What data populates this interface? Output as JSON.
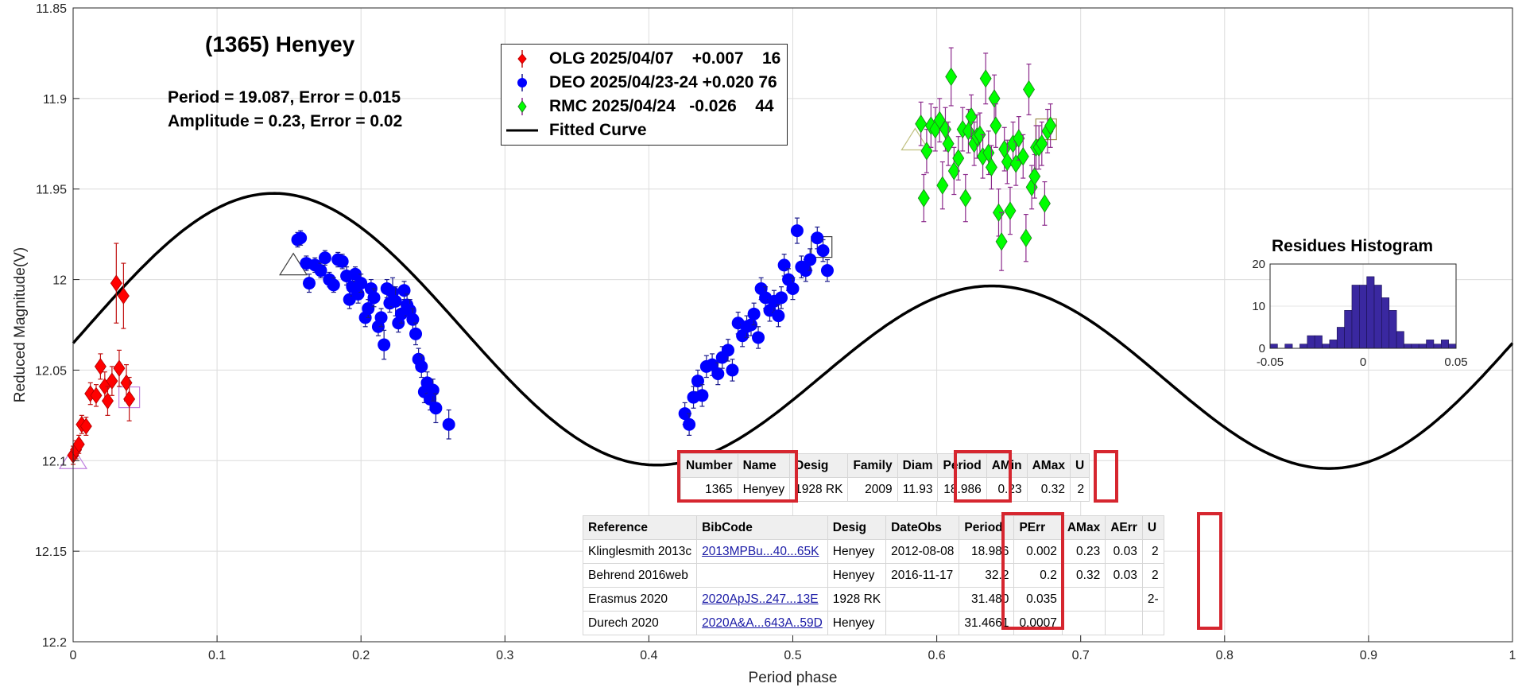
{
  "chart_data": {
    "type": "scatter",
    "title": "(1365) Henyey",
    "xlabel": "Period phase",
    "ylabel": "Reduced Magnitude(V)",
    "xlim": [
      0,
      1
    ],
    "ylim": [
      11.85,
      12.2
    ],
    "y_reversed": true,
    "grid": true,
    "x_ticks": [
      "0",
      "0.1",
      "0.2",
      "0.3",
      "0.4",
      "0.5",
      "0.6",
      "0.7",
      "0.8",
      "0.9",
      "1"
    ],
    "y_ticks": [
      "11.85",
      "11.9",
      "11.95",
      "12",
      "12.05",
      "12.1",
      "12.15",
      "12.2"
    ],
    "info_line1": "Period =  19.087, Error = 0.015",
    "info_line2": "Amplitude = 0.23, Error = 0.02",
    "fit": {
      "name": "Fitted Curve",
      "mean": 12.04,
      "a1": -0.0157,
      "b1": -0.0202,
      "a2": 0.0108,
      "b2": -0.0611
    },
    "series": [
      {
        "name": "OLG",
        "date": "2025/04/07",
        "offset": "+0.007",
        "count": "16",
        "color": "#ff0000",
        "marker": "diamond",
        "points": [
          [
            0.0,
            12.097,
            0.005
          ],
          [
            0.002,
            12.094,
            0.005
          ],
          [
            0.004,
            12.091,
            0.005
          ],
          [
            0.006,
            12.08,
            0.005
          ],
          [
            0.009,
            12.081,
            0.005
          ],
          [
            0.012,
            12.063,
            0.006
          ],
          [
            0.016,
            12.064,
            0.006
          ],
          [
            0.019,
            12.048,
            0.007
          ],
          [
            0.022,
            12.059,
            0.008
          ],
          [
            0.024,
            12.067,
            0.008
          ],
          [
            0.027,
            12.056,
            0.008
          ],
          [
            0.03,
            12.002,
            0.022
          ],
          [
            0.032,
            12.049,
            0.01
          ],
          [
            0.035,
            12.009,
            0.018
          ],
          [
            0.037,
            12.057,
            0.01
          ],
          [
            0.039,
            12.066,
            0.012
          ]
        ]
      },
      {
        "name": "DEO",
        "date": "2025/04/23-24",
        "offset": "+0.020",
        "count": "76",
        "color": "#0000ff",
        "marker": "circle",
        "points": [
          [
            0.156,
            11.978,
            0.004
          ],
          [
            0.158,
            11.977,
            0.004
          ],
          [
            0.162,
            11.991,
            0.004
          ],
          [
            0.164,
            12.002,
            0.005
          ],
          [
            0.168,
            11.992,
            0.004
          ],
          [
            0.172,
            11.995,
            0.004
          ],
          [
            0.175,
            11.988,
            0.004
          ],
          [
            0.178,
            12.0,
            0.004
          ],
          [
            0.181,
            12.003,
            0.004
          ],
          [
            0.184,
            11.989,
            0.004
          ],
          [
            0.187,
            11.99,
            0.004
          ],
          [
            0.19,
            11.998,
            0.005
          ],
          [
            0.192,
            12.011,
            0.005
          ],
          [
            0.194,
            12.004,
            0.005
          ],
          [
            0.196,
            11.997,
            0.004
          ],
          [
            0.198,
            12.008,
            0.005
          ],
          [
            0.2,
            12.002,
            0.005
          ],
          [
            0.203,
            12.021,
            0.005
          ],
          [
            0.205,
            12.016,
            0.005
          ],
          [
            0.207,
            12.005,
            0.005
          ],
          [
            0.209,
            12.01,
            0.005
          ],
          [
            0.212,
            12.026,
            0.005
          ],
          [
            0.214,
            12.021,
            0.005
          ],
          [
            0.216,
            12.036,
            0.008
          ],
          [
            0.218,
            12.005,
            0.005
          ],
          [
            0.22,
            12.013,
            0.005
          ],
          [
            0.222,
            12.007,
            0.008
          ],
          [
            0.224,
            12.012,
            0.008
          ],
          [
            0.226,
            12.024,
            0.005
          ],
          [
            0.228,
            12.019,
            0.005
          ],
          [
            0.23,
            12.006,
            0.005
          ],
          [
            0.232,
            12.014,
            0.006
          ],
          [
            0.234,
            12.017,
            0.006
          ],
          [
            0.236,
            12.022,
            0.006
          ],
          [
            0.238,
            12.03,
            0.006
          ],
          [
            0.24,
            12.044,
            0.006
          ],
          [
            0.242,
            12.048,
            0.006
          ],
          [
            0.244,
            12.062,
            0.006
          ],
          [
            0.246,
            12.057,
            0.006
          ],
          [
            0.248,
            12.066,
            0.006
          ],
          [
            0.25,
            12.061,
            0.006
          ],
          [
            0.252,
            12.071,
            0.008
          ],
          [
            0.261,
            12.08,
            0.008
          ],
          [
            0.425,
            12.074,
            0.006
          ],
          [
            0.428,
            12.08,
            0.006
          ],
          [
            0.431,
            12.065,
            0.006
          ],
          [
            0.434,
            12.056,
            0.006
          ],
          [
            0.437,
            12.064,
            0.006
          ],
          [
            0.44,
            12.048,
            0.006
          ],
          [
            0.444,
            12.047,
            0.006
          ],
          [
            0.448,
            12.052,
            0.006
          ],
          [
            0.451,
            12.043,
            0.006
          ],
          [
            0.455,
            12.039,
            0.006
          ],
          [
            0.458,
            12.05,
            0.006
          ],
          [
            0.462,
            12.024,
            0.006
          ],
          [
            0.465,
            12.031,
            0.006
          ],
          [
            0.468,
            12.026,
            0.006
          ],
          [
            0.471,
            12.025,
            0.006
          ],
          [
            0.473,
            12.019,
            0.006
          ],
          [
            0.476,
            12.032,
            0.006
          ],
          [
            0.478,
            12.005,
            0.006
          ],
          [
            0.481,
            12.01,
            0.006
          ],
          [
            0.484,
            12.017,
            0.006
          ],
          [
            0.487,
            12.012,
            0.006
          ],
          [
            0.49,
            12.02,
            0.006
          ],
          [
            0.492,
            12.01,
            0.006
          ],
          [
            0.494,
            11.992,
            0.006
          ],
          [
            0.497,
            12.0,
            0.006
          ],
          [
            0.5,
            12.005,
            0.006
          ],
          [
            0.503,
            11.973,
            0.007
          ],
          [
            0.506,
            11.993,
            0.006
          ],
          [
            0.509,
            11.995,
            0.006
          ],
          [
            0.512,
            11.989,
            0.006
          ],
          [
            0.517,
            11.977,
            0.006
          ],
          [
            0.521,
            11.984,
            0.006
          ],
          [
            0.524,
            11.995,
            0.006
          ]
        ]
      },
      {
        "name": "RMC",
        "date": "2025/04/24",
        "offset": "-0.026",
        "count": "44",
        "color": "#00ff00",
        "marker": "diamond",
        "points": [
          [
            0.589,
            11.914,
            0.012
          ],
          [
            0.591,
            11.955,
            0.013
          ],
          [
            0.593,
            11.929,
            0.012
          ],
          [
            0.596,
            11.915,
            0.012
          ],
          [
            0.599,
            11.917,
            0.012
          ],
          [
            0.602,
            11.912,
            0.012
          ],
          [
            0.604,
            11.948,
            0.013
          ],
          [
            0.606,
            11.917,
            0.012
          ],
          [
            0.608,
            11.925,
            0.012
          ],
          [
            0.61,
            11.888,
            0.016
          ],
          [
            0.612,
            11.94,
            0.013
          ],
          [
            0.615,
            11.933,
            0.012
          ],
          [
            0.618,
            11.917,
            0.012
          ],
          [
            0.62,
            11.955,
            0.013
          ],
          [
            0.622,
            11.918,
            0.012
          ],
          [
            0.624,
            11.91,
            0.012
          ],
          [
            0.626,
            11.925,
            0.012
          ],
          [
            0.628,
            11.921,
            0.012
          ],
          [
            0.63,
            11.92,
            0.012
          ],
          [
            0.632,
            11.932,
            0.012
          ],
          [
            0.634,
            11.889,
            0.014
          ],
          [
            0.636,
            11.93,
            0.012
          ],
          [
            0.638,
            11.938,
            0.012
          ],
          [
            0.64,
            11.9,
            0.013
          ],
          [
            0.641,
            11.915,
            0.012
          ],
          [
            0.643,
            11.963,
            0.013
          ],
          [
            0.645,
            11.979,
            0.016
          ],
          [
            0.647,
            11.928,
            0.012
          ],
          [
            0.649,
            11.935,
            0.012
          ],
          [
            0.651,
            11.962,
            0.013
          ],
          [
            0.653,
            11.925,
            0.012
          ],
          [
            0.655,
            11.936,
            0.012
          ],
          [
            0.657,
            11.922,
            0.012
          ],
          [
            0.66,
            11.932,
            0.012
          ],
          [
            0.662,
            11.977,
            0.013
          ],
          [
            0.664,
            11.895,
            0.014
          ],
          [
            0.666,
            11.949,
            0.012
          ],
          [
            0.668,
            11.943,
            0.012
          ],
          [
            0.669,
            11.927,
            0.012
          ],
          [
            0.671,
            11.927,
            0.012
          ],
          [
            0.673,
            11.925,
            0.012
          ],
          [
            0.675,
            11.958,
            0.012
          ],
          [
            0.677,
            11.918,
            0.012
          ],
          [
            0.679,
            11.915,
            0.012
          ]
        ]
      }
    ],
    "boxes": [
      {
        "shape": "triangle",
        "x": 0.0,
        "y": 12.1,
        "color": "#c080e0"
      },
      {
        "shape": "square",
        "x": 0.039,
        "y": 12.065,
        "color": "#c080e0"
      },
      {
        "shape": "triangle",
        "x": 0.153,
        "y": 11.993,
        "color": "#404040"
      },
      {
        "shape": "square",
        "x": 0.52,
        "y": 11.982,
        "color": "#404040"
      },
      {
        "shape": "triangle",
        "x": 0.585,
        "y": 11.924,
        "color": "#c0c080"
      },
      {
        "shape": "square",
        "x": 0.676,
        "y": 11.917,
        "color": "#a09050"
      }
    ],
    "histogram": {
      "title": "Residues Histogram",
      "xlim": [
        -0.05,
        0.05
      ],
      "ylim": [
        0,
        20
      ],
      "x_ticks": [
        "-0.05",
        "0",
        "0.05"
      ],
      "y_ticks": [
        "0",
        "10",
        "20"
      ],
      "bins_start": -0.05,
      "bin_width": 0.004,
      "counts": [
        1,
        0,
        1,
        0,
        1,
        3,
        3,
        1,
        2,
        5,
        9,
        15,
        15,
        17,
        15,
        12,
        9,
        4,
        1,
        1,
        1,
        2,
        1,
        2,
        1
      ],
      "color": "#3a28a0"
    }
  },
  "legend": {
    "rows": [
      {
        "name": "OLG",
        "date": "2025/04/07",
        "offset": "+0.007",
        "count": "16",
        "color": "#ff0000",
        "marker": "diamond"
      },
      {
        "name": "DEO",
        "date": "2025/04/23-24",
        "offset": "+0.020",
        "count": "76",
        "color": "#0000ff",
        "marker": "circle"
      },
      {
        "name": "RMC",
        "date": "2025/04/24",
        "offset": "-0.026",
        "count": "44",
        "color": "#00ff00",
        "marker": "diamond"
      }
    ],
    "fit_label": "Fitted Curve"
  },
  "summary_table": {
    "headers": [
      "Number",
      "Name",
      "Desig",
      "Family",
      "Diam",
      "Period",
      "AMin",
      "AMax",
      "U"
    ],
    "row": [
      "1365",
      "Henyey",
      "1928 RK",
      "2009",
      "11.93",
      "18.986",
      "0.23",
      "0.32",
      "2"
    ]
  },
  "ref_table": {
    "headers": [
      "Reference",
      "BibCode",
      "Desig",
      "DateObs",
      "Period",
      "PErr",
      "AMax",
      "AErr",
      "U"
    ],
    "rows": [
      [
        "Klinglesmith 2013c",
        "2013MPBu...40...65K",
        "Henyey",
        "2012-08-08",
        "18.986",
        "0.002",
        "0.23",
        "0.03",
        "2"
      ],
      [
        "Behrend 2016web",
        "",
        "Henyey",
        "2016-11-17",
        "32.2",
        "0.2",
        "0.32",
        "0.03",
        "2"
      ],
      [
        "Erasmus 2020",
        "2020ApJS..247...13E",
        "1928 RK",
        "",
        "31.480",
        "0.035",
        "",
        "",
        "2-"
      ],
      [
        "Durech 2020",
        "2020A&A...643A..59D",
        "Henyey",
        "",
        "31.4661",
        "0.0007",
        "",
        "",
        ""
      ]
    ]
  },
  "colors": {
    "highlight": "#d6262f",
    "curve": "#000000",
    "grid": "#dcdcdc",
    "errorbar_rmc": "#8b2a8b",
    "errorbar_deo": "#1a1a8c",
    "errorbar_olg": "#c01010"
  }
}
